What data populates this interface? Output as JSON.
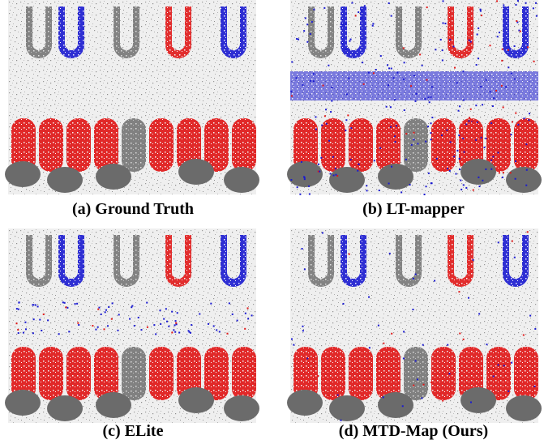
{
  "figure": {
    "panels": [
      {
        "caption": "(a) Ground Truth"
      },
      {
        "caption": "(b) LT-mapper"
      },
      {
        "caption": "(c) ELite"
      },
      {
        "caption": "(d) MTD-Map (Ours)"
      }
    ]
  }
}
